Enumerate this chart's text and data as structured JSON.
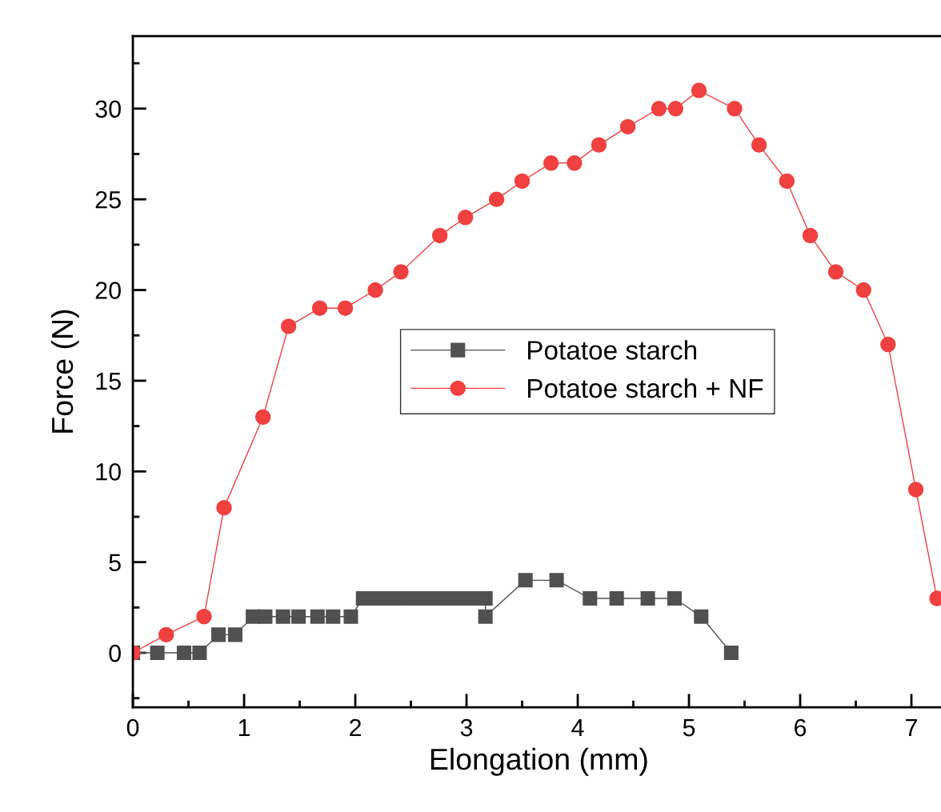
{
  "chart_data": {
    "type": "line",
    "xlabel": "Elongation (mm)",
    "ylabel": "Force (N)",
    "xlim": [
      0,
      7.3
    ],
    "ylim": [
      -3,
      34
    ],
    "xticks": [
      0,
      1,
      2,
      3,
      4,
      5,
      6,
      7
    ],
    "yticks": [
      0,
      5,
      10,
      15,
      20,
      25,
      30
    ],
    "grid": false,
    "legend": "center",
    "line_style": "solid",
    "series": [
      {
        "name": "Potatoe starch",
        "color": "#505050",
        "marker": "square",
        "x": [
          0,
          0.22,
          0.46,
          0.6,
          0.77,
          0.92,
          1.08,
          1.19,
          1.35,
          1.49,
          1.66,
          1.8,
          1.96,
          2.07,
          2.18,
          2.29,
          2.4,
          2.51,
          2.63,
          2.74,
          2.85,
          2.96,
          3.07,
          3.17,
          3.17,
          3.53,
          3.81,
          4.11,
          4.35,
          4.63,
          4.87,
          5.11,
          5.38
        ],
        "values": [
          0,
          0,
          0,
          0,
          1,
          1,
          2,
          2,
          2,
          2,
          2,
          2,
          2,
          3,
          3,
          3,
          3,
          3,
          3,
          3,
          3,
          3,
          3,
          3,
          2,
          4,
          4,
          3,
          3,
          3,
          3,
          2,
          0
        ]
      },
      {
        "name": "Potatoe starch + NF",
        "color": "#f04040",
        "marker": "circle",
        "x": [
          0,
          0.3,
          0.64,
          0.82,
          1.17,
          1.4,
          1.68,
          1.91,
          2.18,
          2.41,
          2.76,
          2.99,
          3.27,
          3.5,
          3.76,
          3.97,
          4.19,
          4.45,
          4.73,
          4.88,
          5.09,
          5.41,
          5.63,
          5.88,
          6.09,
          6.32,
          6.57,
          6.79,
          7.04,
          7.23
        ],
        "values": [
          0,
          1,
          2,
          8,
          13,
          18,
          19,
          19,
          20,
          21,
          23,
          24,
          25,
          26,
          27,
          27,
          28,
          29,
          30,
          30,
          31,
          30,
          28,
          26,
          23,
          21,
          20,
          17,
          9,
          3
        ]
      }
    ]
  }
}
